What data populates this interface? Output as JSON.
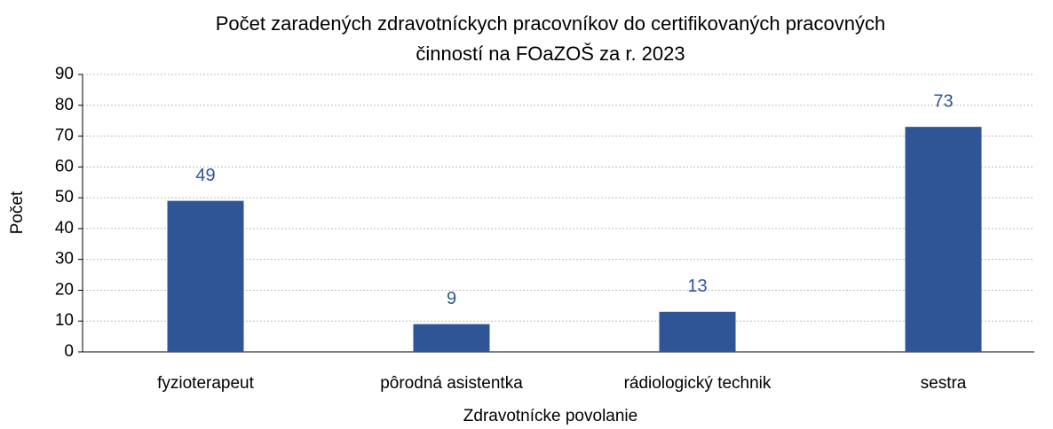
{
  "chart_data": {
    "type": "bar",
    "title": [
      "Počet zaradených zdravotníckych pracovníkov do certifikovaných pracovných",
      "činností na FOaZOŠ za r. 2023"
    ],
    "xlabel": "Zdravotnícke povolanie",
    "ylabel": "Počet",
    "categories": [
      "fyzioterapeut",
      "pôrodná asistentka",
      "rádiologický technik",
      "sestra"
    ],
    "values": [
      49,
      9,
      13,
      73
    ],
    "color": "#2f5597",
    "ylim": [
      0,
      90
    ],
    "yticks": [
      0,
      10,
      20,
      30,
      40,
      50,
      60,
      70,
      80,
      90
    ],
    "grid": true
  }
}
